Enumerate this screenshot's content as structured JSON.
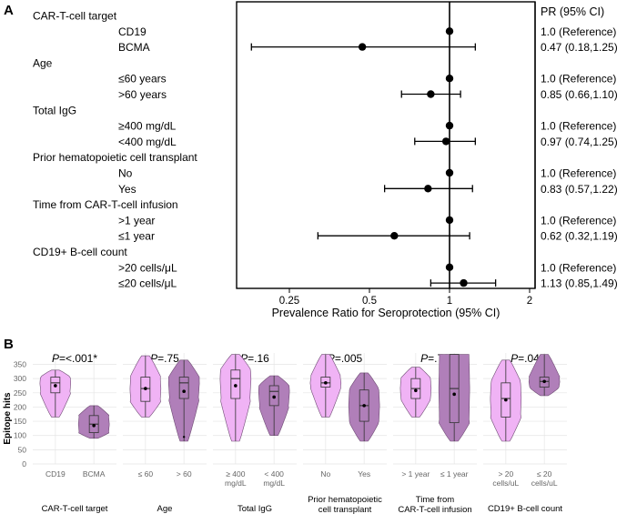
{
  "panel_a": {
    "label": "A",
    "pr_header": "PR (95% CI)",
    "x_ticks": [
      "0.25",
      "0.5",
      "1",
      "2"
    ],
    "xlabel": "Prevalence Ratio for Seroprotection (95% CI)",
    "rows": [
      {
        "label": "CAR-T-cell target",
        "kind": "group"
      },
      {
        "label": "CD19",
        "kind": "level",
        "pr": 1.0,
        "lo": 1.0,
        "hi": 1.0,
        "text": "1.0 (Reference)"
      },
      {
        "label": "BCMA",
        "kind": "level",
        "pr": 0.47,
        "lo": 0.18,
        "hi": 1.25,
        "text": "0.47 (0.18,1.25)"
      },
      {
        "label": "Age",
        "kind": "group"
      },
      {
        "label": "≤60 years",
        "kind": "level",
        "pr": 1.0,
        "lo": 1.0,
        "hi": 1.0,
        "text": "1.0 (Reference)"
      },
      {
        "label": ">60 years",
        "kind": "level",
        "pr": 0.85,
        "lo": 0.66,
        "hi": 1.1,
        "text": "0.85 (0.66,1.10)"
      },
      {
        "label": "Total IgG",
        "kind": "group"
      },
      {
        "label": "≥400 mg/dL",
        "kind": "level",
        "pr": 1.0,
        "lo": 1.0,
        "hi": 1.0,
        "text": "1.0 (Reference)"
      },
      {
        "label": "<400 mg/dL",
        "kind": "level",
        "pr": 0.97,
        "lo": 0.74,
        "hi": 1.25,
        "text": "0.97 (0.74,1.25)"
      },
      {
        "label": "Prior hematopoietic cell transplant",
        "kind": "group"
      },
      {
        "label": "No",
        "kind": "level",
        "pr": 1.0,
        "lo": 1.0,
        "hi": 1.0,
        "text": "1.0 (Reference)"
      },
      {
        "label": "Yes",
        "kind": "level",
        "pr": 0.83,
        "lo": 0.57,
        "hi": 1.22,
        "text": "0.83 (0.57,1.22)"
      },
      {
        "label": "Time from CAR-T-cell infusion",
        "kind": "group"
      },
      {
        "label": ">1 year",
        "kind": "level",
        "pr": 1.0,
        "lo": 1.0,
        "hi": 1.0,
        "text": "1.0 (Reference)"
      },
      {
        "label": "≤1 year",
        "kind": "level",
        "pr": 0.62,
        "lo": 0.32,
        "hi": 1.19,
        "text": "0.62 (0.32,1.19)"
      },
      {
        "label": "CD19+ B-cell count",
        "kind": "group"
      },
      {
        "label": ">20 cells/μL",
        "kind": "level",
        "pr": 1.0,
        "lo": 1.0,
        "hi": 1.0,
        "text": "1.0 (Reference)"
      },
      {
        "label": "≤20 cells/μL",
        "kind": "level",
        "pr": 1.13,
        "lo": 0.85,
        "hi": 1.49,
        "text": "1.13 (0.85,1.49)"
      }
    ]
  },
  "panel_b": {
    "label": "B",
    "ylabel": "Epitope hits",
    "y_ticks": [
      "0",
      "50",
      "100",
      "150",
      "200",
      "250",
      "300",
      "350"
    ],
    "facets": [
      {
        "p_prefix": "P",
        "p_value": "=<.001*",
        "title": "CAR-T-cell target",
        "cats": [
          "CD19",
          "BCMA"
        ],
        "groups": [
          {
            "min": 165,
            "q1": 250,
            "median": 285,
            "q3": 305,
            "max": 330,
            "mean": 275
          },
          {
            "min": 90,
            "q1": 110,
            "median": 140,
            "q3": 170,
            "max": 205,
            "mean": 135
          }
        ]
      },
      {
        "p_prefix": "P",
        "p_value": "=.75",
        "title": "Age",
        "cats": [
          "≤ 60",
          "> 60"
        ],
        "groups": [
          {
            "min": 165,
            "q1": 220,
            "median": 265,
            "q3": 305,
            "max": 380,
            "mean": 265
          },
          {
            "min": 80,
            "q1": 230,
            "median": 285,
            "q3": 305,
            "max": 365,
            "mean": 255,
            "outlier": 95
          }
        ]
      },
      {
        "p_prefix": "P",
        "p_value": "=.16",
        "title": "Total IgG",
        "cats": [
          "≥ 400\nmg/dL",
          "< 400\nmg/dL"
        ],
        "groups": [
          {
            "min": 80,
            "q1": 230,
            "median": 300,
            "q3": 330,
            "max": 385,
            "mean": 275
          },
          {
            "min": 100,
            "q1": 205,
            "median": 255,
            "q3": 275,
            "max": 310,
            "mean": 235
          }
        ]
      },
      {
        "p_prefix": "P",
        "p_value": "=.005",
        "title": "Prior hematopoietic\ncell transplant",
        "cats": [
          "No",
          "Yes"
        ],
        "groups": [
          {
            "min": 165,
            "q1": 270,
            "median": 285,
            "q3": 305,
            "max": 385,
            "mean": 285
          },
          {
            "min": 80,
            "q1": 150,
            "median": 205,
            "q3": 260,
            "max": 320,
            "mean": 205
          }
        ]
      },
      {
        "p_prefix": "P",
        "p_value": "=.76",
        "title": "Time from\nCAR-T-cell infusion",
        "cats": [
          "> 1 year",
          "≤ 1 year"
        ],
        "groups": [
          {
            "min": 165,
            "q1": 230,
            "median": 265,
            "q3": 300,
            "max": 340,
            "mean": 258
          },
          {
            "min": 80,
            "q1": 145,
            "median": 265,
            "q3": 385,
            "max": 385,
            "mean": 245
          }
        ]
      },
      {
        "p_prefix": "P",
        "p_value": "=.04",
        "title": "CD19+ B-cell count",
        "cats": [
          "> 20\ncells/uL",
          "≤ 20\ncells/uL"
        ],
        "groups": [
          {
            "min": 80,
            "q1": 165,
            "median": 230,
            "q3": 285,
            "max": 365,
            "mean": 225
          },
          {
            "min": 240,
            "q1": 270,
            "median": 290,
            "q3": 305,
            "max": 385,
            "mean": 290
          }
        ]
      }
    ]
  },
  "colors": {
    "light": "#f0b3f5",
    "dark": "#b07fb9",
    "text": "#222222",
    "grid": "#e4e4e4",
    "axis": "#666666"
  },
  "chart_data": [
    {
      "type": "forest",
      "xlabel": "Prevalence Ratio for Seroprotection (95% CI)",
      "x_scale": "log",
      "x_ticks": [
        0.25,
        0.5,
        1,
        2
      ],
      "reference_line": 1,
      "categories": [
        "CD19",
        "BCMA",
        "≤60 years",
        ">60 years",
        "≥400 mg/dL",
        "<400 mg/dL",
        "No",
        "Yes",
        ">1 year",
        "≤1 year",
        ">20 cells/μL",
        "≤20 cells/μL"
      ],
      "pr": [
        1.0,
        0.47,
        1.0,
        0.85,
        1.0,
        0.97,
        1.0,
        0.83,
        1.0,
        0.62,
        1.0,
        1.13
      ],
      "ci_low": [
        1.0,
        0.18,
        1.0,
        0.66,
        1.0,
        0.74,
        1.0,
        0.57,
        1.0,
        0.32,
        1.0,
        0.85
      ],
      "ci_high": [
        1.0,
        1.25,
        1.0,
        1.1,
        1.0,
        1.25,
        1.0,
        1.22,
        1.0,
        1.19,
        1.0,
        1.49
      ]
    },
    {
      "type": "violin",
      "ylabel": "Epitope hits",
      "ylim": [
        0,
        390
      ],
      "y_ticks": [
        0,
        50,
        100,
        150,
        200,
        250,
        300,
        350
      ],
      "grid": true,
      "note": "six faceted violin + boxplots; approximate values read from figure"
    }
  ]
}
